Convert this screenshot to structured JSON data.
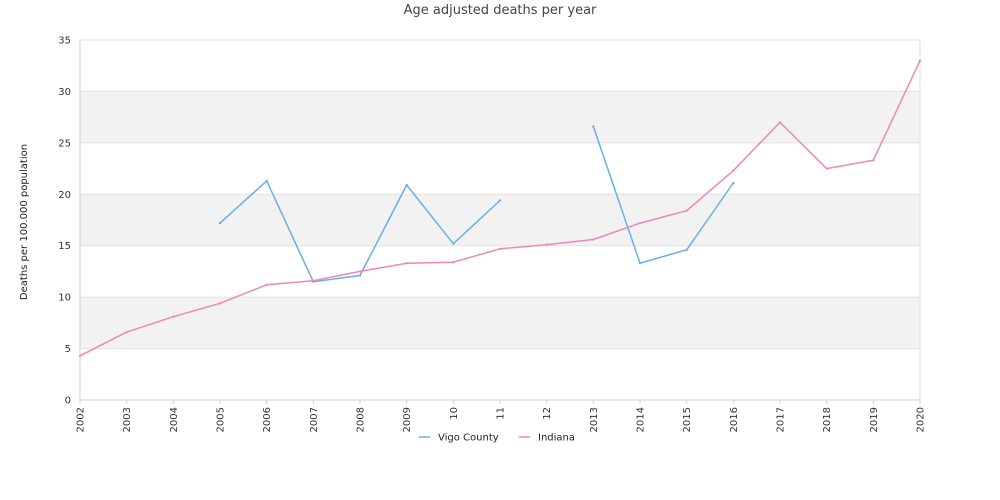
{
  "chart_data": {
    "type": "line",
    "title": "Age adjusted deaths per year",
    "xlabel": "",
    "ylabel": "Deaths per 100.000 population",
    "ylim": [
      0,
      35
    ],
    "yticks": [
      "0",
      "5",
      "10",
      "15",
      "20",
      "25",
      "30",
      "35"
    ],
    "categories": [
      "2002",
      "2003",
      "2004",
      "2005",
      "2006",
      "2007",
      "2008",
      "2009",
      "10",
      "11",
      "12",
      "2013",
      "2014",
      "2015",
      "2016",
      "2017",
      "2018",
      "2019",
      "2020"
    ],
    "grid": "alternating horizontal bands",
    "legend_position": "bottom",
    "series": [
      {
        "name": "Vigo County",
        "color": "#6aaee8",
        "values": [
          null,
          null,
          null,
          17.2,
          21.3,
          11.5,
          12.1,
          20.9,
          15.2,
          19.4,
          null,
          26.6,
          13.3,
          14.6,
          21.1,
          null,
          null,
          null,
          null
        ]
      },
      {
        "name": "Indiana",
        "color": "#ee86bd",
        "values": [
          4.3,
          6.6,
          8.1,
          9.4,
          11.2,
          11.6,
          12.5,
          13.3,
          13.4,
          14.7,
          15.1,
          15.6,
          17.2,
          18.4,
          22.3,
          27.0,
          22.5,
          23.3,
          33.0
        ]
      }
    ]
  }
}
